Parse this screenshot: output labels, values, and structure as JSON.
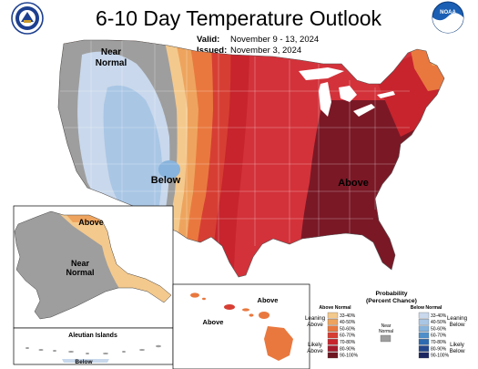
{
  "title": "6-10 Day Temperature Outlook",
  "valid_label": "Valid:",
  "valid_dates": "November 9 - 13, 2024",
  "issued_label": "Issued:",
  "issued_date": "November 3, 2024",
  "map_labels": {
    "near_normal_line1": "Near",
    "near_normal_line2": "Normal",
    "below": "Below",
    "above": "Above",
    "alaska_above": "Above",
    "alaska_near_line1": "Near",
    "alaska_near_line2": "Normal",
    "aleutian": "Aleutian Islands",
    "aleutian_below": "Below",
    "hawaii_above_1": "Above",
    "hawaii_above_2": "Above"
  },
  "legend": {
    "title_line1": "Probability",
    "title_line2": "(Percent Chance)",
    "above_header": "Above Normal",
    "below_header": "Below Normal",
    "near_normal_line1": "Near",
    "near_normal_line2": "Normal",
    "leaning_above_line1": "Leaning",
    "leaning_above_line2": "Above",
    "likely_above_line1": "Likely",
    "likely_above_line2": "Above",
    "leaning_below_line1": "Leaning",
    "leaning_below_line2": "Below",
    "likely_below_line1": "Likely",
    "likely_below_line2": "Below",
    "ranges": [
      "33-40%",
      "40-50%",
      "50-60%",
      "60-70%",
      "70-80%",
      "80-90%",
      "90-100%"
    ],
    "above_colors": [
      "#f4c98d",
      "#eea45e",
      "#e9783f",
      "#d73e33",
      "#c7242d",
      "#a51a2c",
      "#6d1622"
    ],
    "below_colors": [
      "#c9d8ec",
      "#a9c6e5",
      "#87b3dc",
      "#4e8fca",
      "#2e6ab0",
      "#23468c",
      "#1c2762"
    ],
    "near_color": "#9e9e9e"
  },
  "logos": {
    "left_icon": "noaa-commerce-seal-icon",
    "right_icon": "noaa-logo-icon",
    "right_text": "NOAA"
  }
}
